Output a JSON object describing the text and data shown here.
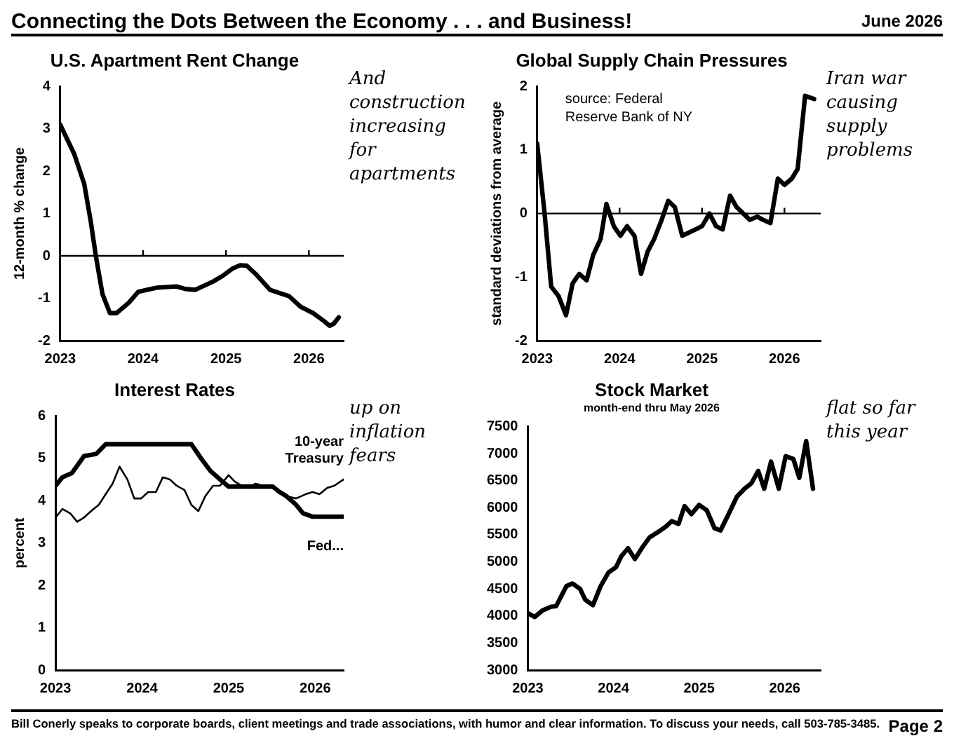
{
  "chart_data": [
    {
      "type": "other",
      "title": "Connecting the Dots Between the Economy . . . and Business!",
      "subtitle": "June 2026",
      "annotations": [
        "Bill Conerly speaks to corporate boards, client meetings and trade associations, with humor and clear information.  To discuss your needs, call 503-785-3485.",
        "Page 2"
      ]
    },
    {
      "type": "line",
      "title": "U.S. Apartment Rent Change",
      "ylabel": "12-month % change",
      "xlim": [
        2023,
        2026.42
      ],
      "xticks": [
        2023,
        2024,
        2025,
        2026
      ],
      "ylim": [
        -2,
        4
      ],
      "yticks": [
        -2,
        -1,
        0,
        1,
        2,
        3,
        4
      ],
      "grid": false,
      "legend": false,
      "marker": "none",
      "line_style": "solid",
      "ref_lines": [
        {
          "axis": "y",
          "value": 0
        }
      ],
      "annotations": [
        "And construction increasing for apartments"
      ],
      "series": [
        {
          "color": "#000000",
          "x": [
            2023,
            2023.17,
            2023.29,
            2023.37,
            2023.43,
            2023.51,
            2023.6,
            2023.68,
            2023.83,
            2023.94,
            2024.05,
            2024.17,
            2024.4,
            2024.51,
            2024.63,
            2024.74,
            2024.85,
            2024.96,
            2025.08,
            2025.17,
            2025.25,
            2025.37,
            2025.53,
            2025.65,
            2025.76,
            2025.9,
            2026.05,
            2026.19,
            2026.25,
            2026.3,
            2026.36
          ],
          "values": [
            3.1,
            2.4,
            1.7,
            0.8,
            0,
            -0.9,
            -1.35,
            -1.35,
            -1.1,
            -0.85,
            -0.8,
            -0.75,
            -0.72,
            -0.78,
            -0.8,
            -0.7,
            -0.6,
            -0.47,
            -0.3,
            -0.22,
            -0.23,
            -0.45,
            -0.8,
            -0.88,
            -0.95,
            -1.2,
            -1.35,
            -1.55,
            -1.65,
            -1.6,
            -1.45
          ]
        }
      ]
    },
    {
      "type": "line",
      "title": "Global Supply Chain Pressures",
      "ylabel": "standard deviations from average",
      "xlim": [
        2023,
        2026.44
      ],
      "xticks": [
        2023,
        2024,
        2025,
        2026
      ],
      "ylim": [
        -2,
        2
      ],
      "yticks": [
        -2,
        -1,
        0,
        1,
        2
      ],
      "grid": false,
      "legend": false,
      "marker": "none",
      "line_style": "solid",
      "ref_lines": [
        {
          "axis": "y",
          "value": 0
        }
      ],
      "annotations": [
        "source: Federal Reserve Bank of NY",
        "Iran war causing supply problems"
      ],
      "series": [
        {
          "color": "#000000",
          "x": [
            2023,
            2023.09,
            2023.17,
            2023.26,
            2023.35,
            2023.43,
            2023.51,
            2023.6,
            2023.68,
            2023.77,
            2023.84,
            2023.93,
            2024.01,
            2024.09,
            2024.18,
            2024.26,
            2024.34,
            2024.42,
            2024.51,
            2024.59,
            2024.67,
            2024.76,
            2024.84,
            2024.92,
            2025,
            2025.09,
            2025.17,
            2025.25,
            2025.34,
            2025.42,
            2025.5,
            2025.58,
            2025.67,
            2025.74,
            2025.83,
            2025.92,
            2026,
            2026.09,
            2026.16,
            2026.25,
            2026.36
          ],
          "values": [
            1.1,
            0,
            -1.15,
            -1.3,
            -1.6,
            -1.1,
            -0.95,
            -1.05,
            -0.65,
            -0.4,
            0.15,
            -0.2,
            -0.35,
            -0.2,
            -0.35,
            -0.95,
            -0.6,
            -0.4,
            -0.1,
            0.2,
            0.1,
            -0.35,
            -0.3,
            -0.25,
            -0.2,
            0,
            -0.2,
            -0.25,
            0.28,
            0.1,
            0,
            -0.1,
            -0.05,
            -0.1,
            -0.15,
            0.55,
            0.45,
            0.55,
            0.7,
            1.85,
            1.8
          ]
        }
      ]
    },
    {
      "type": "line",
      "title": "Interest Rates",
      "ylabel": "percent",
      "xlim": [
        2023,
        2026.33
      ],
      "xticks": [
        2023,
        2024,
        2025,
        2026
      ],
      "ylim": [
        0,
        6
      ],
      "yticks": [
        0,
        1,
        2,
        3,
        4,
        5,
        6
      ],
      "grid": false,
      "legend": false,
      "marker": "none",
      "line_style": "solid",
      "annotations": [
        "up on inflation fears"
      ],
      "series": [
        {
          "name": "Fed...",
          "color": "#000000",
          "x": [
            2023,
            2023.08,
            2023.19,
            2023.33,
            2023.47,
            2023.58,
            2024.57,
            2024.68,
            2024.79,
            2024.9,
            2025,
            2025.51,
            2025.59,
            2025.67,
            2025.78,
            2025.86,
            2025.97,
            2026.33
          ],
          "values": [
            4.35,
            4.55,
            4.65,
            5.05,
            5.1,
            5.33,
            5.33,
            5,
            4.7,
            4.5,
            4.33,
            4.33,
            4.2,
            4.1,
            3.9,
            3.7,
            3.62,
            3.62
          ]
        },
        {
          "name": "10-year Treasury",
          "color": "#000000",
          "x": [
            2023,
            2023.08,
            2023.17,
            2023.25,
            2023.33,
            2023.41,
            2023.5,
            2023.58,
            2023.66,
            2023.74,
            2023.83,
            2023.91,
            2023.99,
            2024.07,
            2024.16,
            2024.24,
            2024.32,
            2024.4,
            2024.49,
            2024.57,
            2024.65,
            2024.73,
            2024.82,
            2024.9,
            2025,
            2025.07,
            2025.15,
            2025.23,
            2025.31,
            2025.4,
            2025.51,
            2025.59,
            2025.67,
            2025.78,
            2025.89,
            2025.97,
            2026.05,
            2026.14,
            2026.22,
            2026.33
          ],
          "values": [
            3.6,
            3.8,
            3.7,
            3.5,
            3.6,
            3.75,
            3.9,
            4.15,
            4.4,
            4.8,
            4.5,
            4.05,
            4.05,
            4.2,
            4.2,
            4.55,
            4.5,
            4.35,
            4.25,
            3.9,
            3.75,
            4.1,
            4.35,
            4.35,
            4.6,
            4.45,
            4.35,
            4.3,
            4.4,
            4.35,
            4.3,
            4.2,
            4.1,
            4.05,
            4.15,
            4.2,
            4.15,
            4.3,
            4.35,
            4.5
          ]
        }
      ]
    },
    {
      "type": "line",
      "title": "Stock Market",
      "subtitle": "month-end thru May 2026",
      "xlim": [
        2023,
        2026.42
      ],
      "xticks": [
        2023,
        2024,
        2025,
        2026
      ],
      "ylim": [
        3000,
        7500
      ],
      "yticks": [
        3000,
        3500,
        4000,
        4500,
        5000,
        5500,
        6000,
        6500,
        7000,
        7500
      ],
      "grid": false,
      "legend": false,
      "marker": "none",
      "line_style": "solid",
      "annotations": [
        "flat so far this year"
      ],
      "series": [
        {
          "color": "#000000",
          "x": [
            2023,
            2023.08,
            2023.17,
            2023.27,
            2023.33,
            2023.45,
            2023.52,
            2023.61,
            2023.67,
            2023.76,
            2023.85,
            2023.94,
            2024.03,
            2024.09,
            2024.17,
            2024.25,
            2024.33,
            2024.42,
            2024.52,
            2024.61,
            2024.68,
            2024.76,
            2024.83,
            2024.91,
            2025,
            2025.09,
            2025.18,
            2025.25,
            2025.35,
            2025.44,
            2025.53,
            2025.61,
            2025.69,
            2025.76,
            2025.84,
            2025.93,
            2026.01,
            2026.1,
            2026.17,
            2026.25,
            2026.33
          ],
          "values": [
            4050,
            3980,
            4100,
            4170,
            4180,
            4550,
            4600,
            4500,
            4300,
            4200,
            4550,
            4800,
            4900,
            5100,
            5250,
            5050,
            5250,
            5450,
            5550,
            5650,
            5750,
            5700,
            6030,
            5880,
            6050,
            5950,
            5620,
            5580,
            5900,
            6200,
            6350,
            6450,
            6680,
            6350,
            6850,
            6350,
            6950,
            6900,
            6550,
            7230,
            6350
          ]
        }
      ]
    }
  ]
}
